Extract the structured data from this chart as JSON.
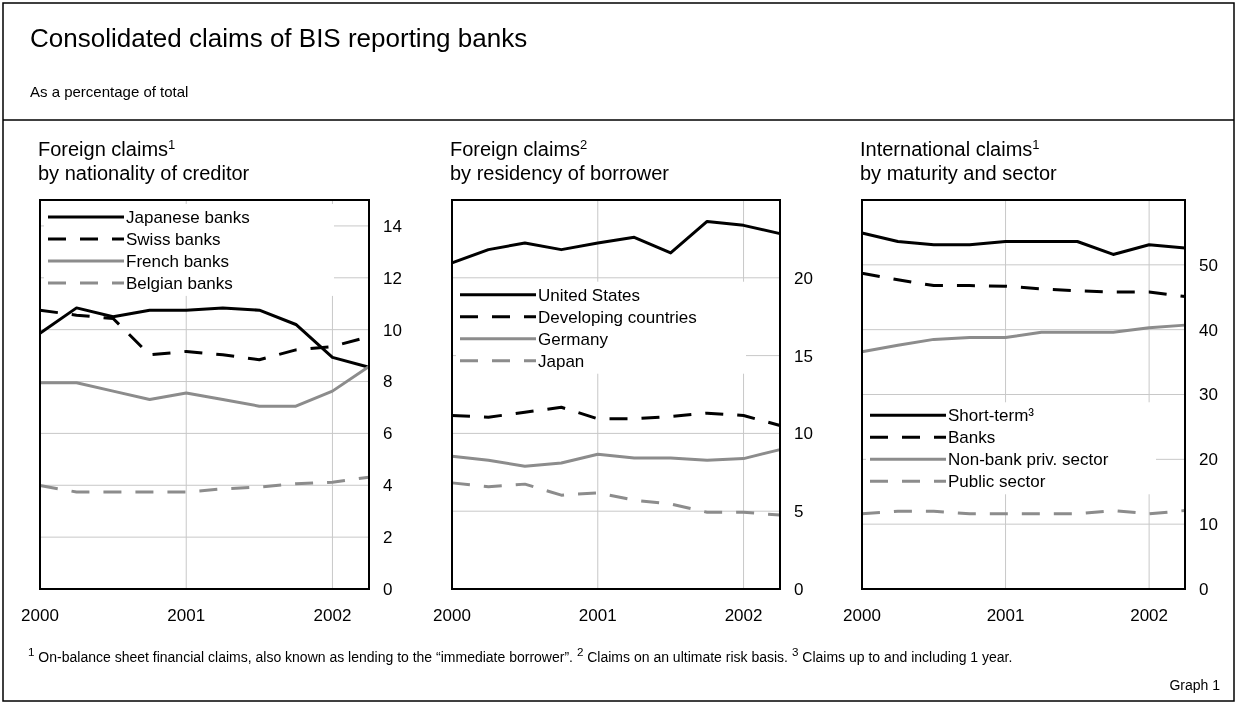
{
  "chart_data": [
    {
      "type": "line",
      "title": "Foreign claims$^{1}$",
      "subtitle": "by nationality of creditor",
      "annotations": [
        "Consolidated claims of BIS reporting banks",
        "As a percentage of total",
        "$^{1}$ On-balance sheet financial claims, also known as lending to the “immediate borrower”.  $^{2}$ Claims on an ultimate risk basis.  $^{3}$ Claims up to and including 1 year.",
        "Graph 1"
      ],
      "x": [
        2000,
        2000.25,
        2000.5,
        2000.75,
        2001,
        2001.25,
        2001.5,
        2001.75,
        2002,
        2002.25
      ],
      "xlim": [
        2000,
        2002.25
      ],
      "xticks": [
        2000,
        2001,
        2002
      ],
      "ylim": [
        0,
        15
      ],
      "yticks": [
        0,
        2,
        4,
        6,
        8,
        10,
        12,
        14
      ],
      "grid": true,
      "legend": "top left",
      "series": [
        {
          "name": "Japanese banks",
          "color": "#000000",
          "line_style": "solid",
          "values": [
            9.86,
            10.84,
            10.5,
            10.75,
            10.75,
            10.84,
            10.75,
            10.2,
            8.93,
            8.55
          ]
        },
        {
          "name": "Swiss banks",
          "color": "#000000",
          "line_style": "dashed",
          "values": [
            10.75,
            10.56,
            10.43,
            9.03,
            9.16,
            9.03,
            8.84,
            9.22,
            9.35,
            9.73
          ]
        },
        {
          "name": "French banks",
          "color": "#8c8c8c",
          "line_style": "solid",
          "values": [
            7.95,
            7.95,
            7.63,
            7.31,
            7.56,
            7.31,
            7.05,
            7.05,
            7.63,
            8.58
          ]
        },
        {
          "name": "Belgian banks",
          "color": "#8c8c8c",
          "line_style": "dashed",
          "values": [
            3.99,
            3.74,
            3.74,
            3.74,
            3.74,
            3.86,
            3.93,
            4.06,
            4.12,
            4.31
          ]
        }
      ]
    },
    {
      "type": "line",
      "title": "Foreign claims$^{2}$",
      "subtitle": "by residency of borrower",
      "x": [
        2000,
        2000.25,
        2000.5,
        2000.75,
        2001,
        2001.25,
        2001.5,
        2001.75,
        2002,
        2002.25
      ],
      "xlim": [
        2000,
        2002.25
      ],
      "xticks": [
        2000,
        2001,
        2002
      ],
      "ylim": [
        0,
        25
      ],
      "yticks": [
        0,
        5,
        10,
        15,
        20
      ],
      "grid": true,
      "legend": "left",
      "series": [
        {
          "name": "United States",
          "color": "#000000",
          "line_style": "solid",
          "values": [
            20.96,
            21.81,
            22.24,
            21.81,
            22.24,
            22.6,
            21.6,
            23.62,
            23.37,
            22.84
          ]
        },
        {
          "name": "Developing countries",
          "color": "#000000",
          "line_style": "dashed",
          "values": [
            11.15,
            11.04,
            11.36,
            11.68,
            10.94,
            10.94,
            11.09,
            11.3,
            11.15,
            10.51
          ]
        },
        {
          "name": "Germany",
          "color": "#8c8c8c",
          "line_style": "solid",
          "values": [
            8.53,
            8.27,
            7.89,
            8.1,
            8.66,
            8.42,
            8.42,
            8.27,
            8.38,
            8.96
          ]
        },
        {
          "name": "Japan",
          "color": "#8c8c8c",
          "line_style": "dashed",
          "values": [
            6.82,
            6.57,
            6.74,
            6.03,
            6.18,
            5.71,
            5.46,
            4.93,
            4.93,
            4.75
          ]
        }
      ]
    },
    {
      "type": "line",
      "title": "International claims$^{1}$",
      "subtitle": "by maturity and sector",
      "x": [
        2000,
        2000.25,
        2000.5,
        2000.75,
        2001,
        2001.25,
        2001.5,
        2001.75,
        2002,
        2002.25
      ],
      "xlim": [
        2000,
        2002.25
      ],
      "xticks": [
        2000,
        2001,
        2002
      ],
      "ylim": [
        0,
        60
      ],
      "yticks": [
        0,
        10,
        20,
        30,
        40,
        50
      ],
      "grid": true,
      "legend": "bottom left",
      "series": [
        {
          "name": "Short-term³",
          "color": "#000000",
          "line_style": "solid",
          "values": [
            54.9,
            53.6,
            53.1,
            53.1,
            53.6,
            53.6,
            53.6,
            51.6,
            53.1,
            52.6
          ]
        },
        {
          "name": "Banks",
          "color": "#000000",
          "line_style": "dashed",
          "values": [
            48.7,
            47.7,
            46.8,
            46.8,
            46.7,
            46.3,
            46.0,
            45.8,
            45.8,
            45.1
          ]
        },
        {
          "name": "Non-bank priv. sector",
          "color": "#8c8c8c",
          "line_style": "solid",
          "values": [
            36.6,
            37.6,
            38.5,
            38.8,
            38.8,
            39.6,
            39.6,
            39.6,
            40.3,
            40.7
          ]
        },
        {
          "name": "Public sector",
          "color": "#8c8c8c",
          "line_style": "dashed",
          "values": [
            11.6,
            12.0,
            12.0,
            11.6,
            11.6,
            11.6,
            11.6,
            12.1,
            11.6,
            12.1
          ]
        }
      ]
    }
  ]
}
